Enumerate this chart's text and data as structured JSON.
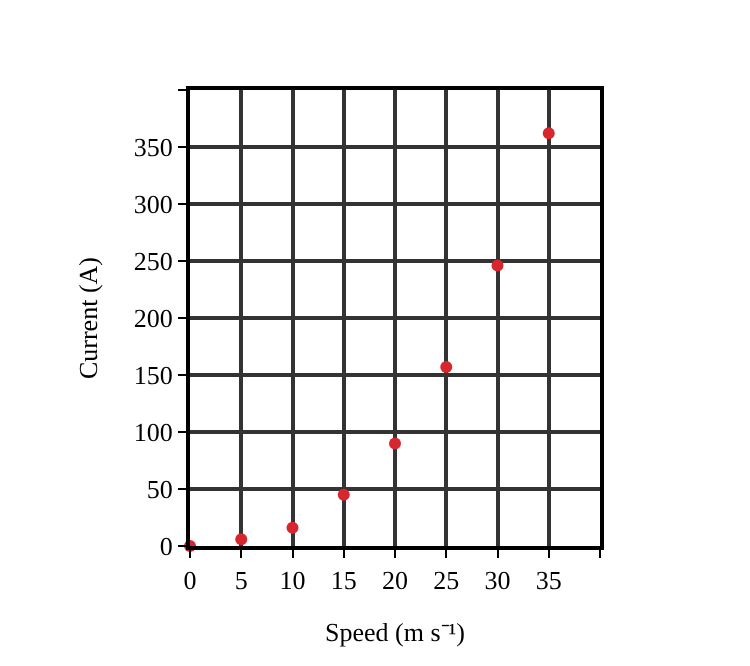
{
  "chart_data": {
    "type": "scatter",
    "xlabel": "Speed (m s⁻¹)",
    "ylabel": "Current (A)",
    "x": [
      0,
      5,
      10,
      15,
      20,
      25,
      30,
      35
    ],
    "series": [
      {
        "color": "#d7262e",
        "values": [
          0,
          6,
          16,
          45,
          90,
          157,
          246,
          362
        ]
      }
    ],
    "xlim": [
      0,
      40
    ],
    "ylim": [
      0,
      400
    ],
    "xticks": [
      0,
      5,
      10,
      15,
      20,
      25,
      30,
      35,
      {
        "value": 40,
        "label": null
      }
    ],
    "yticks": [
      0,
      50,
      100,
      150,
      200,
      250,
      300,
      350,
      {
        "value": 400,
        "label": null
      }
    ],
    "grid": true,
    "marker": "circle",
    "legend": false
  }
}
